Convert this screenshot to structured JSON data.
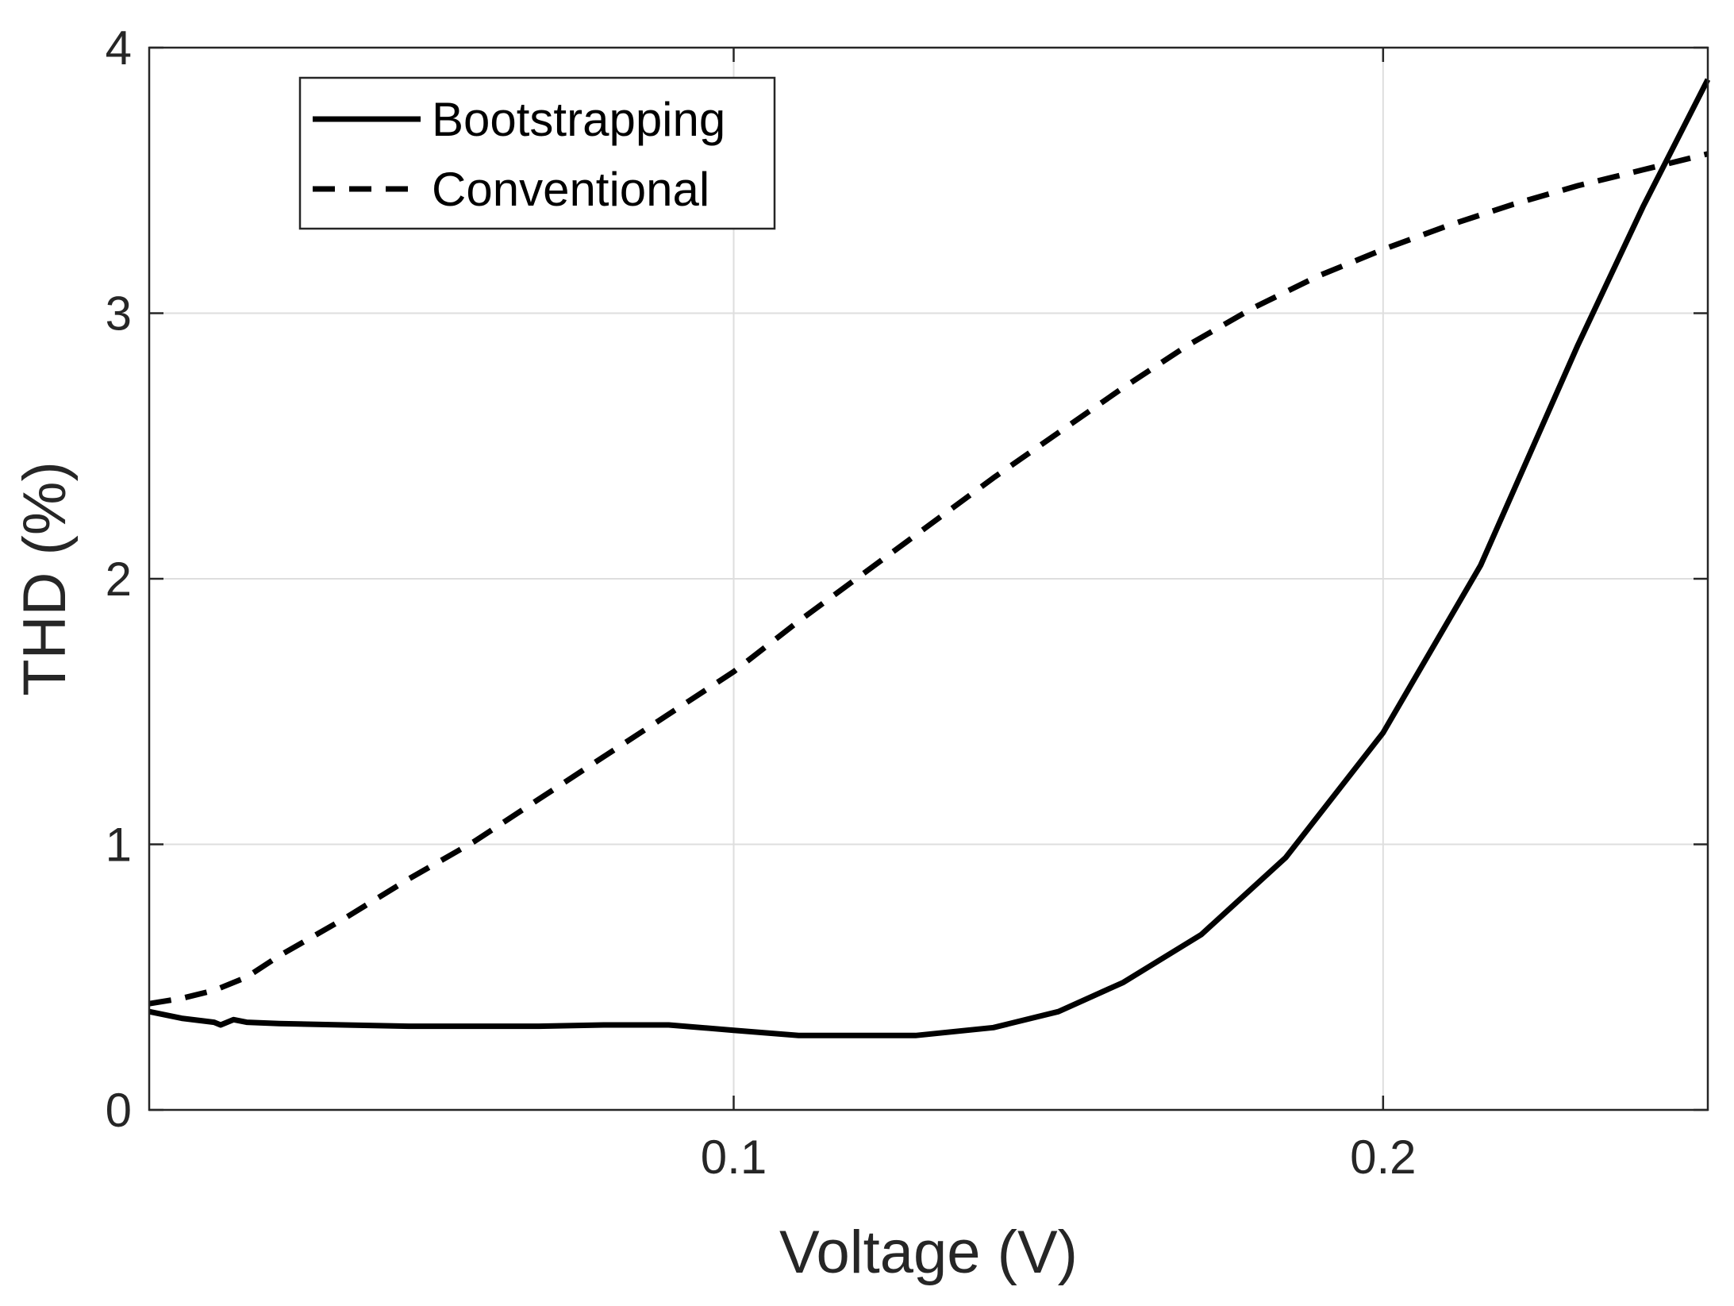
{
  "chart_data": {
    "type": "line",
    "title": "",
    "xlabel": "Voltage (V)",
    "ylabel": "THD (%)",
    "xlim": [
      0.01,
      0.25
    ],
    "ylim": [
      0,
      4
    ],
    "xticks": [
      0.1,
      0.2
    ],
    "xtick_labels": [
      "0.1",
      "0.2"
    ],
    "yticks": [
      0,
      1,
      2,
      3,
      4
    ],
    "ytick_labels": [
      "0",
      "1",
      "2",
      "3",
      "4"
    ],
    "grid": true,
    "legend_position": "top-left",
    "series": [
      {
        "name": "Bootstrapping",
        "style": "solid",
        "color": "#000000",
        "x": [
          0.01,
          0.015,
          0.02,
          0.021,
          0.023,
          0.025,
          0.03,
          0.04,
          0.05,
          0.06,
          0.07,
          0.08,
          0.09,
          0.1,
          0.11,
          0.12,
          0.128,
          0.14,
          0.15,
          0.16,
          0.172,
          0.185,
          0.2,
          0.215,
          0.23,
          0.24,
          0.25
        ],
        "values": [
          0.37,
          0.345,
          0.33,
          0.32,
          0.34,
          0.33,
          0.325,
          0.32,
          0.315,
          0.315,
          0.315,
          0.32,
          0.32,
          0.3,
          0.28,
          0.28,
          0.28,
          0.31,
          0.37,
          0.48,
          0.66,
          0.95,
          1.42,
          2.05,
          2.88,
          3.4,
          3.88
        ]
      },
      {
        "name": "Conventional",
        "style": "dashed",
        "color": "#000000",
        "x": [
          0.01,
          0.015,
          0.02,
          0.025,
          0.03,
          0.04,
          0.05,
          0.06,
          0.07,
          0.08,
          0.09,
          0.1,
          0.11,
          0.12,
          0.13,
          0.14,
          0.15,
          0.16,
          0.17,
          0.18,
          0.19,
          0.2,
          0.21,
          0.22,
          0.23,
          0.24,
          0.25
        ],
        "values": [
          0.4,
          0.42,
          0.45,
          0.5,
          0.58,
          0.72,
          0.87,
          1.01,
          1.17,
          1.33,
          1.49,
          1.65,
          1.84,
          2.02,
          2.2,
          2.38,
          2.55,
          2.72,
          2.88,
          3.02,
          3.14,
          3.24,
          3.33,
          3.41,
          3.48,
          3.54,
          3.6
        ]
      }
    ]
  }
}
